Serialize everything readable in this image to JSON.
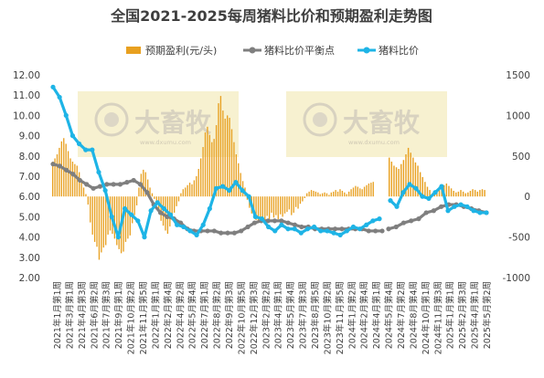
{
  "chart_data": {
    "type": "bar+line",
    "title": "全国2021-2025每周猪料比价和预期盈利走势图",
    "legend": [
      {
        "name": "预期盈利(元/头)",
        "color": "#e8a020",
        "kind": "bar"
      },
      {
        "name": "猪料比价平衡点",
        "color": "#7f7f7f",
        "kind": "line"
      },
      {
        "name": "猪料比价",
        "color": "#1eb4e6",
        "kind": "line"
      }
    ],
    "legend_position": "top",
    "y_left": {
      "min": 2,
      "max": 12,
      "ticks": [
        "2.00",
        "3.00",
        "4.00",
        "5.00",
        "6.00",
        "7.00",
        "8.00",
        "9.00",
        "10.00",
        "11.00",
        "12.00"
      ]
    },
    "y_right": {
      "min": -1000,
      "max": 1500,
      "ticks": [
        "-1000",
        "-500",
        "0",
        "500",
        "1000",
        "1500"
      ]
    },
    "watermark": {
      "text": "大畜牧",
      "sub": "www.dxumu.com"
    },
    "x_labels": [
      "2021年1月第1周",
      "2021年3月第1周",
      "2021年4月第3周",
      "2021年6月第2周",
      "2021年7月第3周",
      "2021年9月第1周",
      "2021年10月第2周",
      "2021年11月第5周",
      "2022年1月第1周",
      "2022年2月第4周",
      "2022年4月第2周",
      "2022年5月第4周",
      "2022年7月第1周",
      "2022年8月第2周",
      "2022年9月第3周",
      "2022年10月第5周",
      "2022年12月第3周",
      "2023年2月第2周",
      "2023年4月第1周",
      "2023年5月第4周",
      "2023年7月第3周",
      "2023年8月第5周",
      "2023年10月第2周",
      "2023年11月第5周",
      "2024年1月第2周",
      "2024年2月第4周",
      "2024年4月第1周",
      "2024年5月第4周",
      "2024年7月第2周",
      "2024年8月第4周",
      "2024年10月第1周",
      "2024年11月第3周",
      "2025年1月第1周",
      "2025年2月第3周",
      "2025年4月第1周",
      "2025年5月第2周"
    ],
    "profit_bars": [
      430,
      470,
      520,
      600,
      680,
      720,
      650,
      560,
      470,
      430,
      400,
      380,
      300,
      200,
      110,
      30,
      -100,
      -320,
      -470,
      -560,
      -620,
      -780,
      -690,
      -630,
      -600,
      -470,
      -420,
      -460,
      -520,
      -600,
      -650,
      -700,
      -680,
      -560,
      -520,
      -480,
      -330,
      -230,
      -110,
      110,
      280,
      330,
      300,
      210,
      110,
      40,
      -30,
      -110,
      -210,
      -300,
      -360,
      -420,
      -460,
      -370,
      -290,
      -200,
      -120,
      -60,
      40,
      90,
      110,
      140,
      170,
      150,
      200,
      250,
      340,
      470,
      610,
      790,
      860,
      760,
      670,
      710,
      880,
      1150,
      1240,
      1060,
      960,
      1000,
      970,
      830,
      670,
      520,
      410,
      290,
      190,
      110,
      -40,
      -140,
      -210,
      -260,
      -290,
      -310,
      -300,
      -280,
      -300,
      -240,
      -280,
      -200,
      -260,
      -230,
      -280,
      -220,
      -250,
      -210,
      -190,
      -160,
      -230,
      -200,
      -130,
      -150,
      -90,
      -60,
      -20,
      40,
      60,
      80,
      70,
      60,
      50,
      30,
      40,
      50,
      40,
      20,
      50,
      60,
      80,
      60,
      90,
      70,
      50,
      30,
      60,
      90,
      110,
      130,
      120,
      100,
      90,
      120,
      140,
      160,
      170,
      180,
      null,
      null,
      null,
      null,
      null,
      null,
      null,
      null,
      null,
      null,
      null,
      null,
      null,
      null,
      null,
      null,
      null,
      null,
      null,
      null,
      null,
      null,
      null,
      null,
      null,
      null,
      null,
      null,
      null,
      null,
      null,
      null,
      null,
      null,
      null,
      null,
      null,
      null,
      null,
      null,
      null,
      null,
      null,
      null,
      null,
      null,
      null,
      null,
      null,
      null,
      null,
      null,
      null,
      null,
      null,
      null,
      null,
      null,
      null,
      null,
      null,
      null,
      null,
      null,
      null,
      null,
      null,
      null,
      null,
      null,
      null,
      null,
      null,
      null,
      null,
      null,
      null,
      null,
      null,
      null,
      null,
      null,
      null,
      null,
      null,
      null,
      null,
      null
    ],
    "profit_bars_2024": [
      480,
      430,
      380,
      360,
      340,
      400,
      450,
      520,
      600,
      540,
      480,
      420,
      380,
      300,
      240,
      180,
      120,
      80,
      40,
      60,
      80,
      120,
      130,
      140,
      160,
      130,
      100,
      70,
      50,
      60,
      80,
      60,
      40,
      50,
      70,
      90,
      80,
      60,
      80,
      90,
      80
    ],
    "balance_points": [
      7.6,
      7.5,
      7.3,
      7.1,
      6.8,
      6.6,
      6.4,
      6.5,
      6.6,
      6.6,
      6.6,
      6.7,
      6.8,
      6.6,
      6.2,
      5.6,
      5.2,
      5.0,
      4.9,
      4.7,
      4.4,
      4.3,
      4.3,
      4.3,
      4.3,
      4.2,
      4.2,
      4.2,
      4.3,
      4.5,
      4.7,
      4.8,
      4.8,
      4.8,
      4.8,
      4.7,
      4.6,
      4.5,
      4.5,
      4.4,
      4.4,
      4.4,
      4.4,
      4.4,
      4.4,
      4.4,
      4.4,
      4.3,
      4.3,
      4.3,
      null,
      4.4,
      4.5,
      4.7,
      4.8,
      4.9,
      5.2,
      5.3,
      5.5,
      5.6,
      5.6,
      5.5,
      5.4,
      5.3,
      5.2
    ],
    "ratio": [
      11.4,
      10.9,
      10.0,
      9.0,
      8.6,
      8.3,
      8.3,
      7.2,
      6.3,
      5.0,
      4.0,
      5.4,
      5.1,
      4.8,
      4.0,
      5.3,
      5.7,
      5.4,
      5.1,
      4.6,
      4.5,
      4.3,
      4.1,
      4.6,
      5.4,
      6.4,
      6.5,
      6.3,
      6.7,
      6.3,
      6.0,
      5.0,
      4.9,
      4.5,
      4.3,
      4.6,
      4.4,
      4.4,
      4.2,
      4.4,
      4.5,
      4.3,
      4.3,
      4.2,
      4.1,
      4.3,
      4.5,
      4.4,
      4.6,
      4.8,
      4.9,
      null,
      5.8,
      5.5,
      6.2,
      6.6,
      6.4,
      6.0,
      5.9,
      6.2,
      6.5,
      5.3,
      5.5,
      5.6,
      5.5,
      5.3,
      5.2,
      5.2
    ]
  }
}
